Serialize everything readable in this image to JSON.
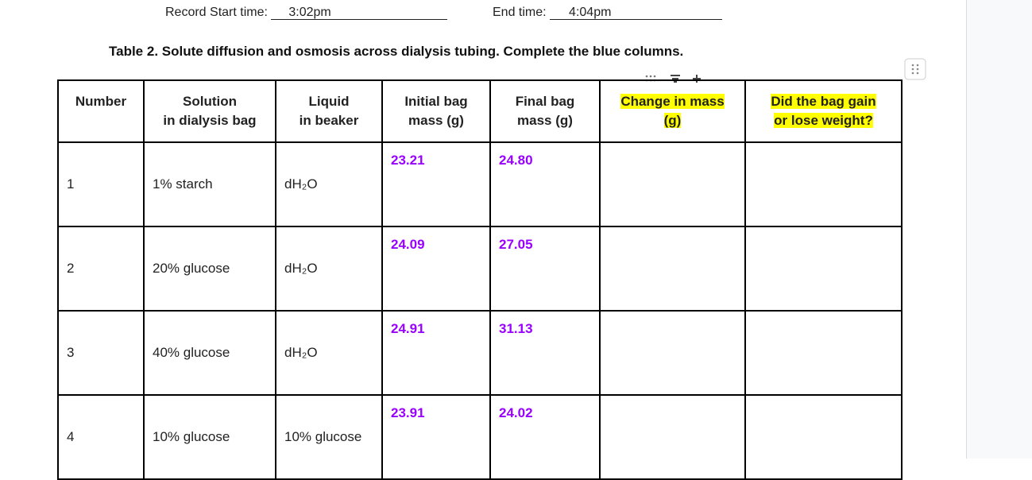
{
  "header": {
    "start_label": "Record Start time:",
    "start_value": "3:02pm",
    "end_label": "End time:",
    "end_value": "4:04pm",
    "title": "Table 2. Solute diffusion and osmosis across dialysis tubing. Complete the blue columns."
  },
  "table": {
    "columns": [
      [
        "Number"
      ],
      [
        "Solution",
        "in dialysis bag"
      ],
      [
        "Liquid",
        "in beaker"
      ],
      [
        "Initial bag",
        "mass (g)"
      ],
      [
        "Final bag",
        "mass (g)"
      ],
      [
        "Change in mass",
        "(g)"
      ],
      [
        "Did the bag gain",
        "or lose weight?"
      ]
    ],
    "rows": [
      [
        "1",
        "1% starch",
        "dH₂O",
        "23.21",
        "24.80",
        "",
        ""
      ],
      [
        "2",
        "20% glucose",
        "dH₂O",
        "24.09",
        "27.05",
        "",
        ""
      ],
      [
        "3",
        "40% glucose",
        "dH₂O",
        "24.91",
        "31.13",
        "",
        ""
      ],
      [
        "4",
        "10% glucose",
        "10% glucose",
        "23.91",
        "24.02",
        "",
        ""
      ]
    ]
  }
}
